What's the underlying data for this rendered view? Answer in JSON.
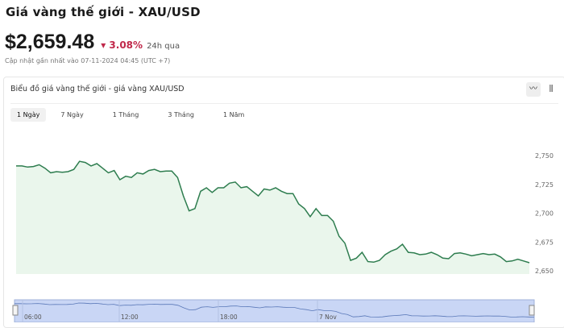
{
  "header": {
    "title": "Giá vàng thế giới - XAU/USD",
    "price": "$2,659.48",
    "change": "3.08%",
    "change_icon": "caret-down-icon",
    "period": "24h qua",
    "updated": "Cập nhật gần nhất vào 07-11-2024 04:45 (UTC +7)"
  },
  "card": {
    "title": "Biểu đồ giá vàng thế giới - giá vàng XAU/USD",
    "tools": [
      {
        "icon": "line-chart-icon",
        "glyph": "〰"
      },
      {
        "icon": "candlestick-icon",
        "glyph": "⫼"
      }
    ],
    "tabs": [
      {
        "label": "1 Ngày",
        "active": true
      },
      {
        "label": "7 Ngày"
      },
      {
        "label": "1 Tháng"
      },
      {
        "label": "3 Tháng"
      },
      {
        "label": "1 Năm"
      }
    ]
  },
  "colors": {
    "line": "#2e7d4f",
    "fill": "#eaf6ec",
    "down": "#c0284a",
    "navigator": "#c9d6f5"
  },
  "chart_data": {
    "type": "area",
    "ylim": [
      2650,
      2760
    ],
    "yticks": [
      2650,
      2675,
      2700,
      2725,
      2750
    ],
    "ytick_labels": [
      "2,650",
      "2,675",
      "2,700",
      "2,725",
      "2,750"
    ],
    "navigator_labels": [
      "06:00",
      "12:00",
      "18:00",
      "7 Nov"
    ],
    "values": [
      2741,
      2741,
      2740,
      2740.5,
      2742,
      2739,
      2735,
      2736,
      2735.5,
      2736,
      2738,
      2745,
      2744,
      2741,
      2743,
      2739,
      2735,
      2737,
      2729,
      2732,
      2731,
      2735,
      2734,
      2737,
      2738,
      2736,
      2736.5,
      2736.5,
      2731,
      2715,
      2702,
      2704,
      2719,
      2722,
      2718,
      2722,
      2722,
      2726,
      2727,
      2722,
      2723,
      2719,
      2715,
      2721,
      2720,
      2722,
      2719,
      2717,
      2717,
      2708,
      2704,
      2697,
      2704,
      2698,
      2698,
      2693,
      2680,
      2674,
      2659,
      2661,
      2666,
      2658,
      2657.5,
      2659,
      2664,
      2667,
      2669,
      2673,
      2666,
      2665.5,
      2664,
      2664.5,
      2666,
      2664,
      2661,
      2660.5,
      2665,
      2665.5,
      2664.5,
      2663,
      2664,
      2665,
      2664,
      2664.5,
      2662,
      2658,
      2658.5,
      2660,
      2658.5,
      2657
    ]
  }
}
